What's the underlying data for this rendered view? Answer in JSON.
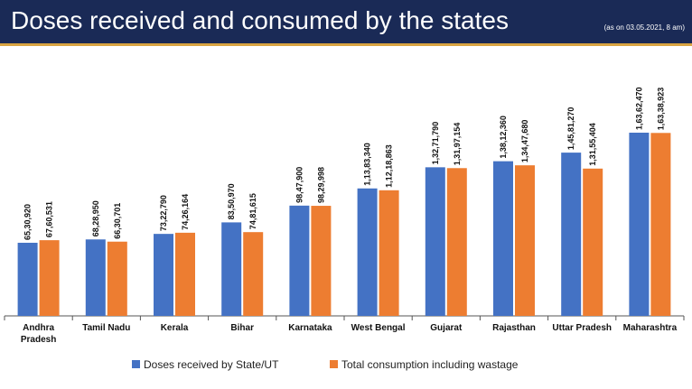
{
  "header": {
    "title": "Doses received and consumed by the states",
    "note": "(as on 03.05.2021, 8 am)"
  },
  "colors": {
    "header_bg": "#1a2a56",
    "stripe": "#d9a441",
    "received": "#4472c4",
    "consumed": "#ed7d31"
  },
  "chart_data": {
    "type": "bar",
    "title": "Doses received and consumed by the states",
    "xlabel": "",
    "ylabel": "",
    "ylim": [
      0,
      17500000
    ],
    "grid": false,
    "legend_position": "bottom-center",
    "categories": [
      [
        "Andhra",
        "Pradesh"
      ],
      [
        "Tamil Nadu"
      ],
      [
        "Kerala"
      ],
      [
        "Bihar"
      ],
      [
        "Karnataka"
      ],
      [
        "West Bengal"
      ],
      [
        "Gujarat"
      ],
      [
        "Rajasthan"
      ],
      [
        "Uttar Pradesh"
      ],
      [
        "Maharashtra"
      ]
    ],
    "series": [
      {
        "name": "Doses received by State/UT",
        "color": "#4472c4",
        "values": [
          6530920,
          6828950,
          7322790,
          8350970,
          9847900,
          11383340,
          13271790,
          13812360,
          14581270,
          16362470
        ],
        "labels": [
          "65,30,920",
          "68,28,950",
          "73,22,790",
          "83,50,970",
          "98,47,900",
          "1,13,83,340",
          "1,32,71,790",
          "1,38,12,360",
          "1,45,81,270",
          "1,63,62,470"
        ]
      },
      {
        "name": "Total consumption including wastage",
        "color": "#ed7d31",
        "values": [
          6760531,
          6630701,
          7426164,
          7481615,
          9829998,
          11218863,
          13197154,
          13447680,
          13155404,
          16338923
        ],
        "labels": [
          "67,60,531",
          "66,30,701",
          "74,26,164",
          "74,81,615",
          "98,29,998",
          "1,12,18,863",
          "1,31,97,154",
          "1,34,47,680",
          "1,31,55,404",
          "1,63,38,923"
        ]
      }
    ]
  }
}
